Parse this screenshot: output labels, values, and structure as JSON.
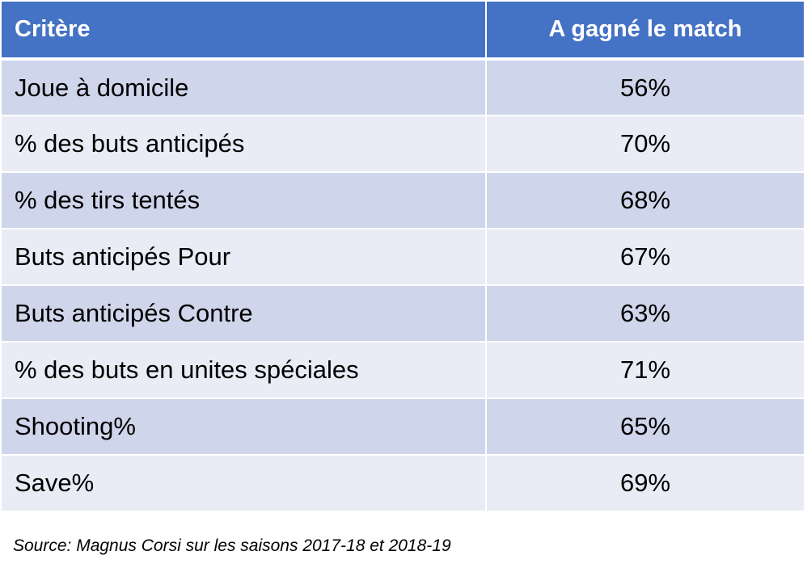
{
  "table": {
    "headers": [
      "Critère",
      "A gagné le match"
    ],
    "rows": [
      {
        "criterion": "Joue à domicile",
        "value": "56%"
      },
      {
        "criterion": "% des buts anticipés",
        "value": "70%"
      },
      {
        "criterion": "% des tirs tentés",
        "value": "68%"
      },
      {
        "criterion": "Buts anticipés Pour",
        "value": "67%"
      },
      {
        "criterion": "Buts anticipés Contre",
        "value": "63%"
      },
      {
        "criterion": "% des buts en unites spéciales",
        "value": "71%"
      },
      {
        "criterion": "Shooting%",
        "value": "65%"
      },
      {
        "criterion": "Save%",
        "value": "69%"
      }
    ]
  },
  "source": "Source: Magnus Corsi sur les saisons 2017-18 et 2018-19",
  "colors": {
    "header_bg": "#4472c4",
    "row_dark": "#cfd5ea",
    "row_light": "#e9ebf5"
  }
}
